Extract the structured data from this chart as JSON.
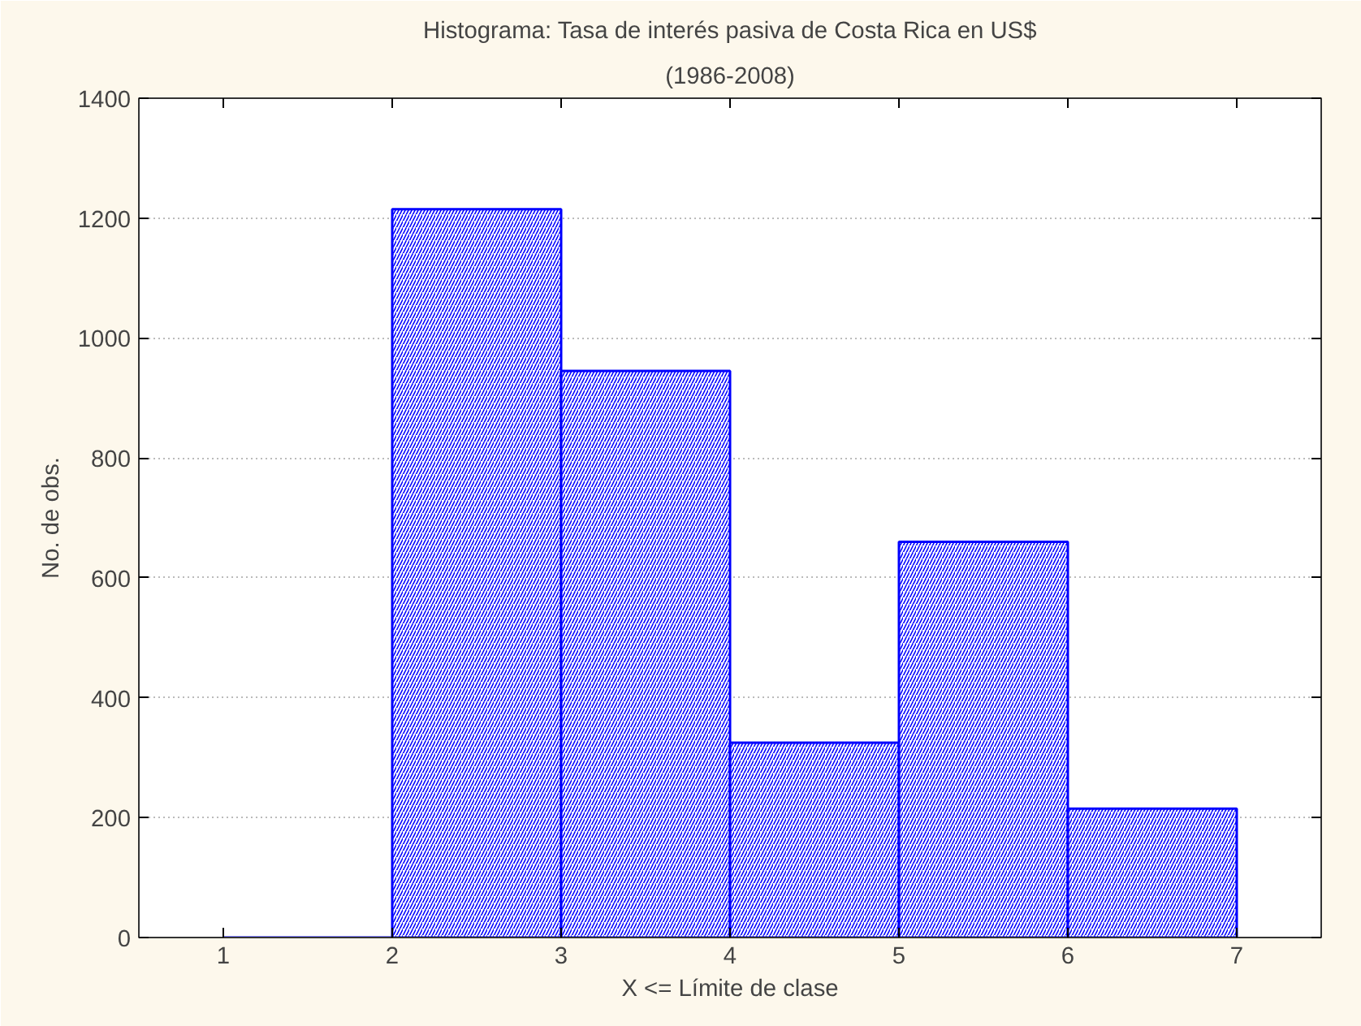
{
  "chart_data": {
    "type": "histogram",
    "title": "Histograma: Tasa de interés pasiva de Costa Rica en US$",
    "subtitle": "(1986-2008)",
    "xlabel": "X <= Límite de clase",
    "ylabel": "No. de obs.",
    "bins": [
      1,
      2,
      3,
      4,
      5,
      6,
      7
    ],
    "values": [
      0,
      1215,
      945,
      325,
      660,
      215
    ],
    "color": "#0000ff",
    "xlim": [
      0.5,
      7.5
    ],
    "xticks": [
      1,
      2,
      3,
      4,
      5,
      6,
      7
    ],
    "ylim": [
      0,
      1400
    ],
    "yticks": [
      0,
      200,
      400,
      600,
      800,
      1000,
      1200,
      1400
    ],
    "grid": "y"
  }
}
